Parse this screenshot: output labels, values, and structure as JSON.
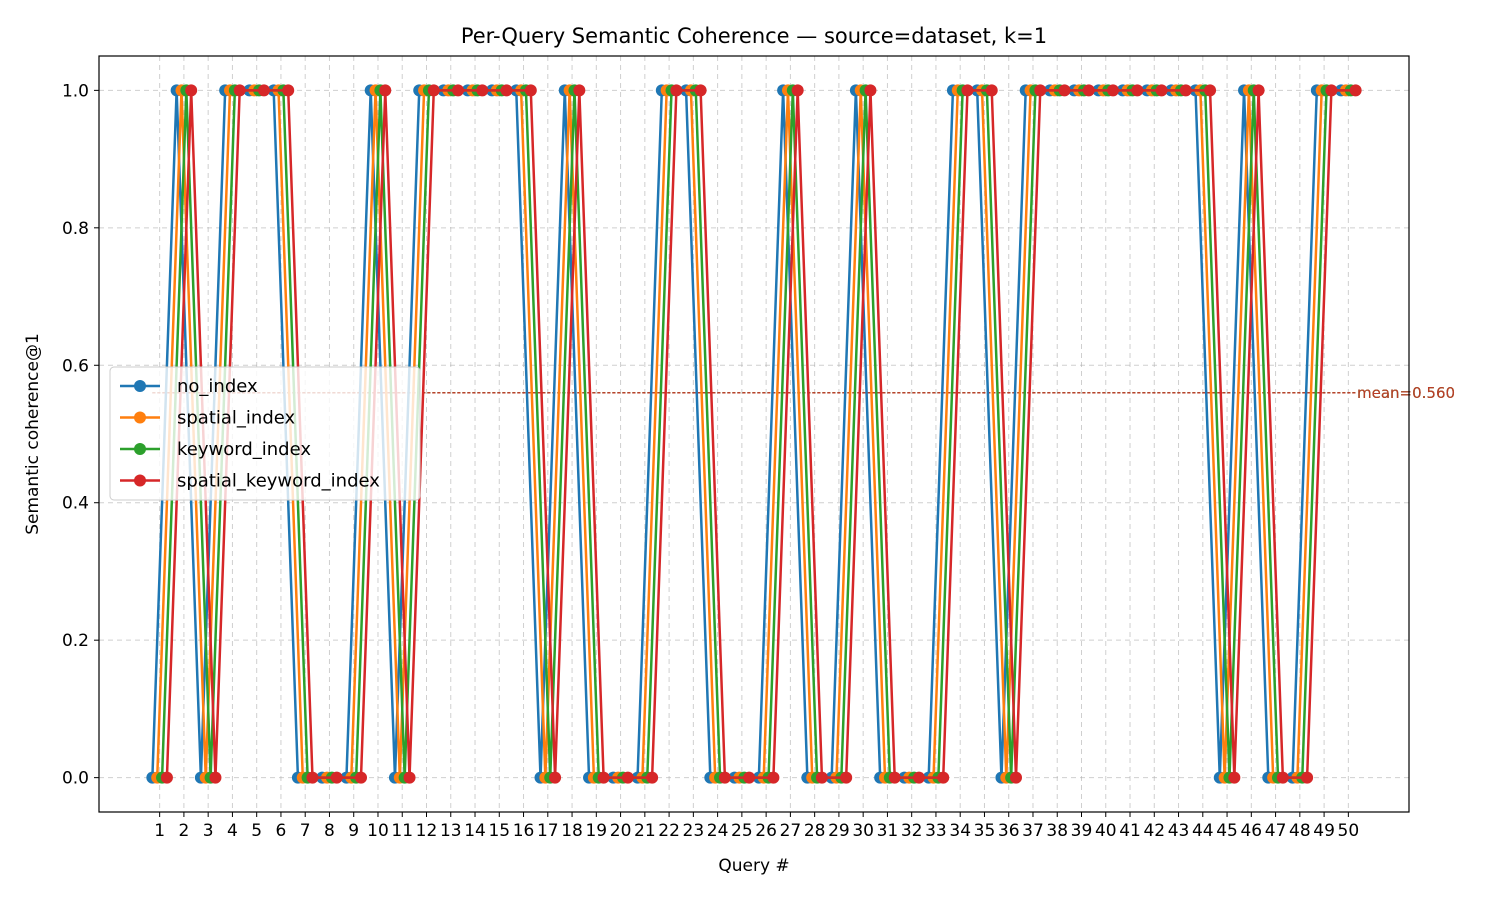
{
  "chart_data": {
    "type": "line",
    "title": "Per-Query Semantic Coherence — source=dataset, k=1",
    "xlabel": "Query #",
    "ylabel": "Semantic coherence@1",
    "x": [
      1,
      2,
      3,
      4,
      5,
      6,
      7,
      8,
      9,
      10,
      11,
      12,
      13,
      14,
      15,
      16,
      17,
      18,
      19,
      20,
      21,
      22,
      23,
      24,
      25,
      26,
      27,
      28,
      29,
      30,
      31,
      32,
      33,
      34,
      35,
      36,
      37,
      38,
      39,
      40,
      41,
      42,
      43,
      44,
      45,
      46,
      47,
      48,
      49,
      50
    ],
    "xlim": [
      -1.5,
      52.5
    ],
    "ylim": [
      -0.05,
      1.05
    ],
    "yticks": [
      0.0,
      0.2,
      0.4,
      0.6,
      0.8,
      1.0
    ],
    "ytick_labels": [
      "0.0",
      "0.2",
      "0.4",
      "0.6",
      "0.8",
      "1.0"
    ],
    "grid": true,
    "legend_position": "center-left",
    "series": [
      {
        "name": "no_index",
        "color": "#1f77b4",
        "offset": -0.3,
        "mean": 0.56,
        "mean_label": "mean=0.560",
        "values": [
          0,
          1,
          0,
          1,
          1,
          1,
          0,
          0,
          0,
          1,
          0,
          1,
          1,
          1,
          1,
          1,
          0,
          1,
          0,
          0,
          0,
          1,
          1,
          0,
          0,
          0,
          1,
          0,
          0,
          1,
          0,
          0,
          0,
          1,
          1,
          0,
          1,
          1,
          1,
          1,
          1,
          1,
          1,
          1,
          0,
          1,
          0,
          0,
          1,
          1
        ]
      },
      {
        "name": "spatial_index",
        "color": "#ff7f0e",
        "offset": -0.1,
        "mean": 0.56,
        "mean_label": "mean=0.560",
        "values": [
          0,
          1,
          0,
          1,
          1,
          1,
          0,
          0,
          0,
          1,
          0,
          1,
          1,
          1,
          1,
          1,
          0,
          1,
          0,
          0,
          0,
          1,
          1,
          0,
          0,
          0,
          1,
          0,
          0,
          1,
          0,
          0,
          0,
          1,
          1,
          0,
          1,
          1,
          1,
          1,
          1,
          1,
          1,
          1,
          0,
          1,
          0,
          0,
          1,
          1
        ]
      },
      {
        "name": "keyword_index",
        "color": "#2ca02c",
        "offset": 0.1,
        "mean": 0.56,
        "mean_label": "mean=0.560",
        "values": [
          0,
          1,
          0,
          1,
          1,
          1,
          0,
          0,
          0,
          1,
          0,
          1,
          1,
          1,
          1,
          1,
          0,
          1,
          0,
          0,
          0,
          1,
          1,
          0,
          0,
          0,
          1,
          0,
          0,
          1,
          0,
          0,
          0,
          1,
          1,
          0,
          1,
          1,
          1,
          1,
          1,
          1,
          1,
          1,
          0,
          1,
          0,
          0,
          1,
          1
        ]
      },
      {
        "name": "spatial_keyword_index",
        "color": "#d62728",
        "offset": 0.3,
        "mean": 0.56,
        "mean_label": "mean=0.560",
        "values": [
          0,
          1,
          0,
          1,
          1,
          1,
          0,
          0,
          0,
          1,
          0,
          1,
          1,
          1,
          1,
          1,
          0,
          1,
          0,
          0,
          0,
          1,
          1,
          0,
          0,
          0,
          1,
          0,
          0,
          1,
          0,
          0,
          0,
          1,
          1,
          0,
          1,
          1,
          1,
          1,
          1,
          1,
          1,
          1,
          0,
          1,
          0,
          0,
          1,
          1
        ]
      }
    ]
  }
}
